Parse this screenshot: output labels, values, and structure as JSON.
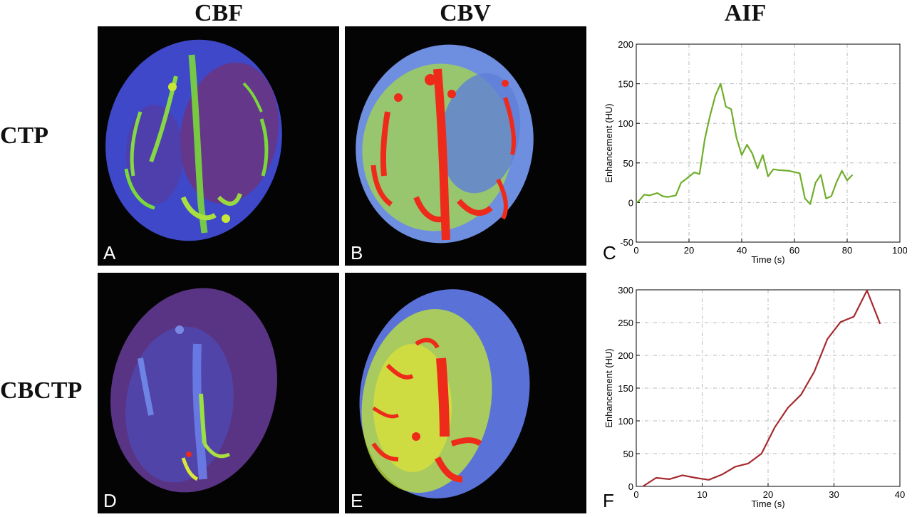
{
  "columns": {
    "cbf": "CBF",
    "cbv": "CBV",
    "aif": "AIF"
  },
  "rows": {
    "ctp": "CTP",
    "cbctp": "CBCTP"
  },
  "panels": {
    "a": "A",
    "b": "B",
    "c": "C",
    "d": "D",
    "e": "E",
    "f": "F"
  },
  "colors": {
    "ctp_aif": "#6fae2a",
    "cbctp_aif": "#a52a2f",
    "background": "#040404"
  },
  "chart_data": [
    {
      "type": "line",
      "panel": "C",
      "xlabel": "Time (s)",
      "ylabel": "Enhancement (HU)",
      "xlim": [
        0,
        100
      ],
      "ylim": [
        -50,
        200
      ],
      "xticks": [
        0,
        20,
        40,
        60,
        80,
        100
      ],
      "yticks": [
        -50,
        0,
        50,
        100,
        150,
        200
      ],
      "grid": true,
      "color": "#6fae2a",
      "x": [
        0,
        1,
        3,
        5,
        8,
        10,
        12,
        15,
        17,
        19,
        22,
        24,
        26,
        28,
        30,
        32,
        34,
        36,
        38,
        40,
        42,
        44,
        46,
        48,
        50,
        52,
        54,
        58,
        62,
        64,
        66,
        68,
        70,
        72,
        74,
        76,
        78,
        80,
        82
      ],
      "y": [
        0,
        2,
        10,
        9,
        12,
        8,
        7,
        9,
        25,
        30,
        38,
        36,
        80,
        110,
        135,
        150,
        121,
        118,
        82,
        60,
        73,
        62,
        43,
        60,
        33,
        42,
        41,
        40,
        37,
        5,
        -2,
        25,
        35,
        5,
        8,
        26,
        40,
        28,
        35
      ]
    },
    {
      "type": "line",
      "panel": "F",
      "xlabel": "Time (s)",
      "ylabel": "Enhancement (HU)",
      "xlim": [
        0,
        40
      ],
      "ylim": [
        0,
        300
      ],
      "xticks": [
        0,
        10,
        20,
        30,
        40
      ],
      "yticks": [
        0,
        50,
        100,
        150,
        200,
        250,
        300
      ],
      "grid": true,
      "color": "#a52a2f",
      "x": [
        1,
        3,
        5,
        7,
        9,
        11,
        13,
        15,
        17,
        19,
        21,
        23,
        25,
        27,
        29,
        31,
        33,
        35,
        37
      ],
      "y": [
        0,
        13,
        11,
        17,
        13,
        10,
        18,
        30,
        35,
        50,
        90,
        120,
        140,
        175,
        225,
        251,
        259,
        299,
        248
      ]
    }
  ]
}
